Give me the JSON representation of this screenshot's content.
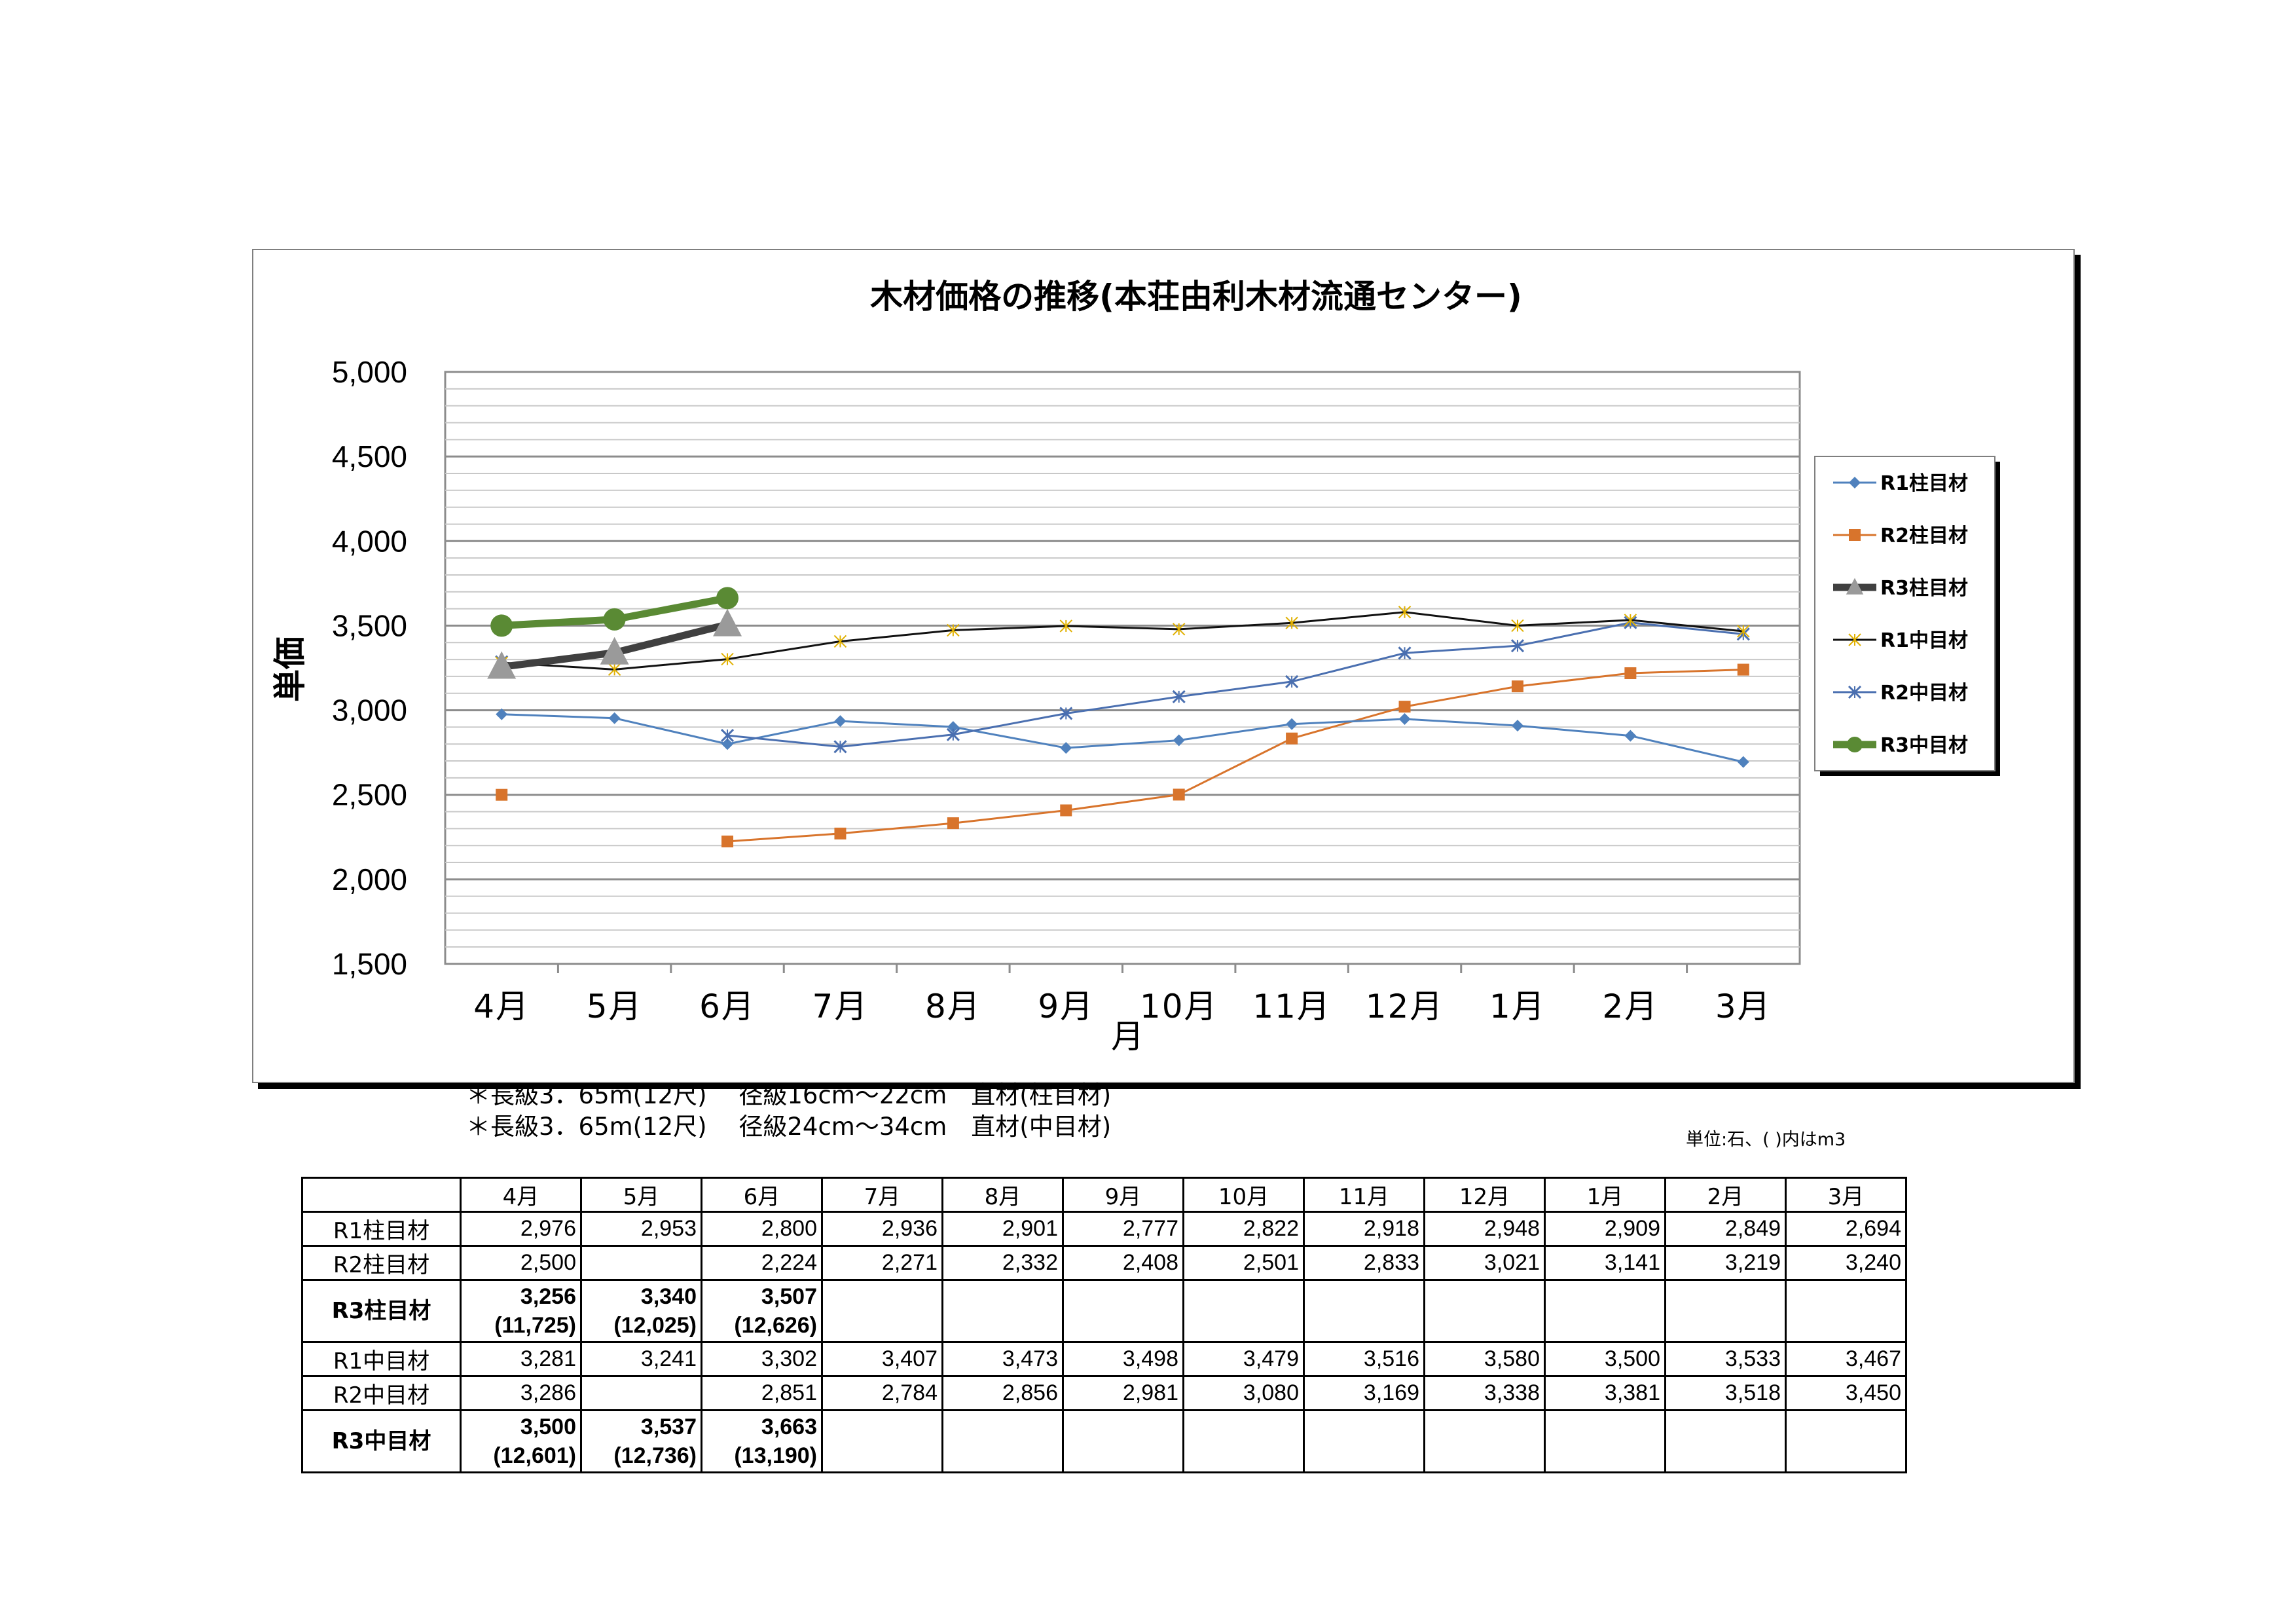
{
  "chart_data": {
    "type": "line",
    "title": "木材価格の推移(本荘由利木材流通センター)",
    "xlabel": "月",
    "ylabel": "単価",
    "categories": [
      "4月",
      "5月",
      "6月",
      "7月",
      "8月",
      "9月",
      "10月",
      "11月",
      "12月",
      "1月",
      "2月",
      "3月"
    ],
    "y_ticks": [
      "5,000",
      "4,500",
      "4,000",
      "3,500",
      "3,000",
      "2,500",
      "2,000",
      "1,500"
    ],
    "ylim": [
      1500,
      5000
    ],
    "grid": true,
    "legend_position": "right",
    "series": [
      {
        "name": "R1柱目材",
        "color": "#4f81bd",
        "marker": "diamond",
        "width": 3,
        "values": [
          2976,
          2953,
          2800,
          2936,
          2901,
          2777,
          2822,
          2918,
          2948,
          2909,
          2849,
          2694
        ]
      },
      {
        "name": "R2柱目材",
        "color": "#d8742c",
        "marker": "square",
        "width": 3,
        "values": [
          2500,
          null,
          2224,
          2271,
          2332,
          2408,
          2501,
          2833,
          3021,
          3141,
          3219,
          3240
        ]
      },
      {
        "name": "R3柱目材",
        "color": "#404040",
        "marker": "triangle",
        "width": 11,
        "values": [
          3256,
          3340,
          3507,
          null,
          null,
          null,
          null,
          null,
          null,
          null,
          null,
          null
        ]
      },
      {
        "name": "R1中目材",
        "color": "#111111",
        "marker": "star",
        "width": 3,
        "values": [
          3281,
          3241,
          3302,
          3407,
          3473,
          3498,
          3479,
          3516,
          3580,
          3500,
          3533,
          3467
        ]
      },
      {
        "name": "R2中目材",
        "color": "#4a6fb0",
        "marker": "x",
        "width": 3,
        "values": [
          3286,
          null,
          2851,
          2784,
          2856,
          2981,
          3080,
          3169,
          3338,
          3381,
          3518,
          3450
        ]
      },
      {
        "name": "R3中目材",
        "color": "#5a8a34",
        "marker": "circle",
        "width": 11,
        "values": [
          3500,
          3537,
          3663,
          null,
          null,
          null,
          null,
          null,
          null,
          null,
          null,
          null
        ]
      }
    ]
  },
  "notes": [
    "＊長級3．65m(12尺)　 径級16cm～22cm　直材(柱目材)",
    "＊長級3．65m(12尺)　 径級24cm～34cm　直材(中目材)"
  ],
  "unit_note": "単位:石、( )内はm3",
  "table": {
    "headers": [
      "4月",
      "5月",
      "6月",
      "7月",
      "8月",
      "9月",
      "10月",
      "11月",
      "12月",
      "1月",
      "2月",
      "3月"
    ],
    "rows": [
      {
        "label": "R1柱目材",
        "bold": false,
        "cells": [
          "2,976",
          "2,953",
          "2,800",
          "2,936",
          "2,901",
          "2,777",
          "2,822",
          "2,918",
          "2,948",
          "2,909",
          "2,849",
          "2,694"
        ]
      },
      {
        "label": "R2柱目材",
        "bold": false,
        "cells": [
          "2,500",
          "",
          "2,224",
          "2,271",
          "2,332",
          "2,408",
          "2,501",
          "2,833",
          "3,021",
          "3,141",
          "3,219",
          "3,240"
        ]
      },
      {
        "label": "R3柱目材",
        "bold": true,
        "cells": [
          "3,256",
          "3,340",
          "3,507",
          "",
          "",
          "",
          "",
          "",
          "",
          "",
          "",
          ""
        ],
        "sub": [
          "(11,725)",
          "(12,025)",
          "(12,626)",
          "",
          "",
          "",
          "",
          "",
          "",
          "",
          "",
          ""
        ]
      },
      {
        "label": "R1中目材",
        "bold": false,
        "cells": [
          "3,281",
          "3,241",
          "3,302",
          "3,407",
          "3,473",
          "3,498",
          "3,479",
          "3,516",
          "3,580",
          "3,500",
          "3,533",
          "3,467"
        ]
      },
      {
        "label": "R2中目材",
        "bold": false,
        "cells": [
          "3,286",
          "",
          "2,851",
          "2,784",
          "2,856",
          "2,981",
          "3,080",
          "3,169",
          "3,338",
          "3,381",
          "3,518",
          "3,450"
        ]
      },
      {
        "label": "R3中目材",
        "bold": true,
        "cells": [
          "3,500",
          "3,537",
          "3,663",
          "",
          "",
          "",
          "",
          "",
          "",
          "",
          "",
          ""
        ],
        "sub": [
          "(12,601)",
          "(12,736)",
          "(13,190)",
          "",
          "",
          "",
          "",
          "",
          "",
          "",
          "",
          ""
        ]
      }
    ]
  }
}
